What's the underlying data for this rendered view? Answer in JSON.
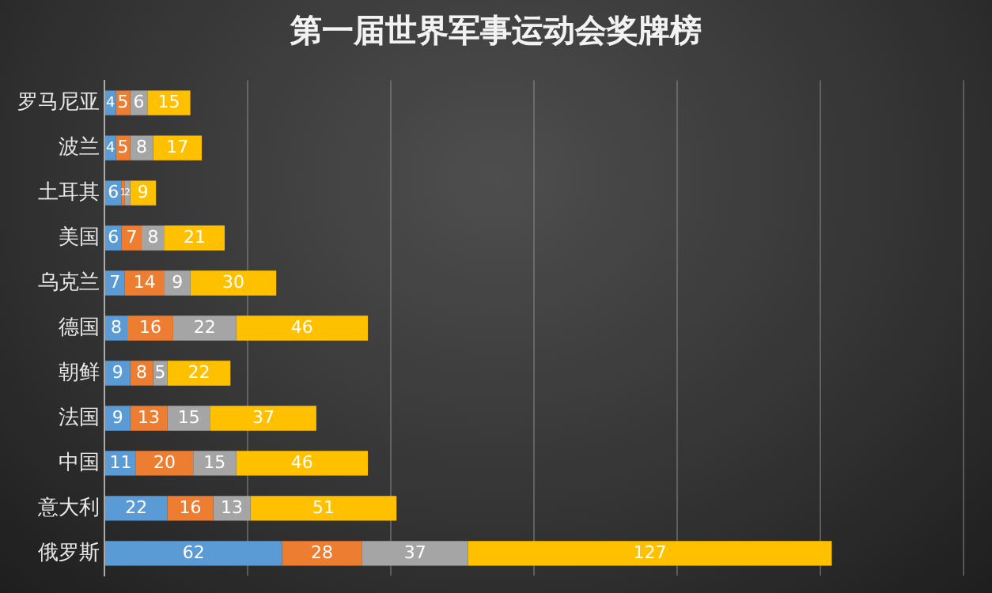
{
  "chart_data": {
    "type": "bar",
    "orientation": "horizontal",
    "stacked": true,
    "title": "第一届世界军事运动会奖牌榜",
    "categories": [
      "罗马尼亚",
      "波兰",
      "土耳其",
      "美国",
      "乌克兰",
      "德国",
      "朝鲜",
      "法国",
      "中国",
      "意大利",
      "俄罗斯"
    ],
    "series": [
      {
        "color": "#5b9bd5",
        "values": [
          4,
          4,
          6,
          6,
          7,
          8,
          9,
          9,
          11,
          22,
          62
        ]
      },
      {
        "color": "#ed7d31",
        "values": [
          5,
          5,
          1,
          7,
          14,
          16,
          8,
          13,
          20,
          16,
          28
        ]
      },
      {
        "color": "#a5a5a5",
        "values": [
          6,
          8,
          2,
          8,
          9,
          22,
          5,
          15,
          15,
          13,
          37
        ]
      },
      {
        "color": "#ffc000",
        "values": [
          15,
          17,
          9,
          21,
          30,
          46,
          22,
          37,
          46,
          51,
          127
        ]
      }
    ],
    "xlim": [
      0,
      300
    ],
    "xticks": [
      {
        "value": 0,
        "label": null
      },
      {
        "value": 50,
        "label": null
      },
      {
        "value": 100,
        "label": null
      },
      {
        "value": 150,
        "label": null
      },
      {
        "value": 200,
        "label": null
      },
      {
        "value": 250,
        "label": null
      },
      {
        "value": 300,
        "label": null
      }
    ],
    "tick_labels": "y",
    "grid": "x",
    "data_labels": true,
    "legend": false
  }
}
